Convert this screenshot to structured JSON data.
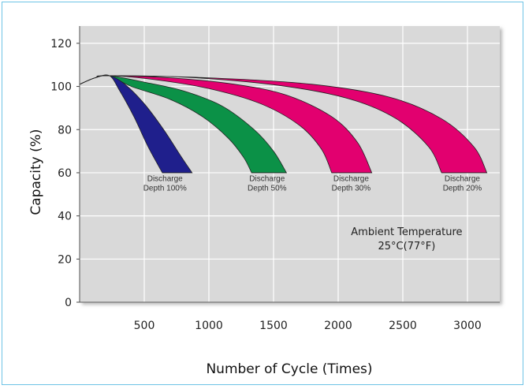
{
  "chart_data": {
    "type": "area",
    "title": "",
    "xlabel": "Number of Cycle (Times)",
    "ylabel": "Capacity (%)",
    "xlim": [
      0,
      3250
    ],
    "ylim": [
      0,
      128
    ],
    "x_ticks": [
      500,
      1000,
      1500,
      2000,
      2500,
      3000
    ],
    "y_ticks": [
      0,
      20,
      40,
      60,
      80,
      100,
      120
    ],
    "grid": true,
    "series": [
      {
        "color": "#1f1f8c",
        "upper": [
          [
            0,
            101
          ],
          [
            120,
            104
          ],
          [
            230,
            105
          ],
          [
            350,
            101
          ],
          [
            500,
            92
          ],
          [
            650,
            80
          ],
          [
            780,
            68
          ],
          [
            870,
            60
          ]
        ],
        "lower": [
          [
            0,
            101
          ],
          [
            120,
            104
          ],
          [
            230,
            105
          ],
          [
            310,
            98
          ],
          [
            420,
            86
          ],
          [
            530,
            72
          ],
          [
            640,
            60
          ]
        ]
      },
      {
        "color": "#0b9147",
        "upper": [
          [
            0,
            101
          ],
          [
            120,
            104
          ],
          [
            230,
            105
          ],
          [
            500,
            102
          ],
          [
            800,
            98
          ],
          [
            1100,
            91
          ],
          [
            1350,
            80
          ],
          [
            1500,
            70
          ],
          [
            1600,
            60
          ]
        ],
        "lower": [
          [
            0,
            101
          ],
          [
            120,
            104
          ],
          [
            230,
            105
          ],
          [
            400,
            100
          ],
          [
            700,
            94
          ],
          [
            950,
            86
          ],
          [
            1150,
            76
          ],
          [
            1270,
            67
          ],
          [
            1330,
            60
          ]
        ]
      },
      {
        "color": "#e2006f",
        "upper": [
          [
            0,
            101
          ],
          [
            120,
            104
          ],
          [
            230,
            105
          ],
          [
            700,
            104
          ],
          [
            1200,
            101
          ],
          [
            1600,
            96
          ],
          [
            1950,
            86
          ],
          [
            2150,
            74
          ],
          [
            2260,
            60
          ]
        ],
        "lower": [
          [
            0,
            101
          ],
          [
            120,
            104
          ],
          [
            230,
            105
          ],
          [
            600,
            103
          ],
          [
            1000,
            99
          ],
          [
            1400,
            92
          ],
          [
            1700,
            82
          ],
          [
            1870,
            71
          ],
          [
            1950,
            60
          ]
        ]
      },
      {
        "color": "#e2006f",
        "upper": [
          [
            0,
            101
          ],
          [
            120,
            104
          ],
          [
            230,
            105
          ],
          [
            1000,
            104
          ],
          [
            1800,
            101
          ],
          [
            2400,
            95
          ],
          [
            2800,
            85
          ],
          [
            3050,
            72
          ],
          [
            3150,
            60
          ]
        ],
        "lower": [
          [
            0,
            101
          ],
          [
            120,
            104
          ],
          [
            230,
            105
          ],
          [
            900,
            104
          ],
          [
            1600,
            100
          ],
          [
            2100,
            94
          ],
          [
            2450,
            85
          ],
          [
            2700,
            72
          ],
          [
            2800,
            60
          ]
        ]
      }
    ],
    "curve_labels": [
      {
        "line1": "Discharge",
        "line2": "Depth 100%",
        "x": 660,
        "y": 58,
        "anchor": "middle"
      },
      {
        "line1": "Discharge",
        "line2": "Depth 50%",
        "x": 1450,
        "y": 58,
        "anchor": "middle"
      },
      {
        "line1": "Discharge",
        "line2": "Depth 30%",
        "x": 2100,
        "y": 58,
        "anchor": "middle"
      },
      {
        "line1": "Discharge",
        "line2": "Depth 20%",
        "x": 2960,
        "y": 58,
        "anchor": "middle"
      }
    ],
    "annotation": {
      "line1": "Ambient Temperature",
      "line2": "25°C(77°F)",
      "x": 2530,
      "y": 31
    }
  }
}
